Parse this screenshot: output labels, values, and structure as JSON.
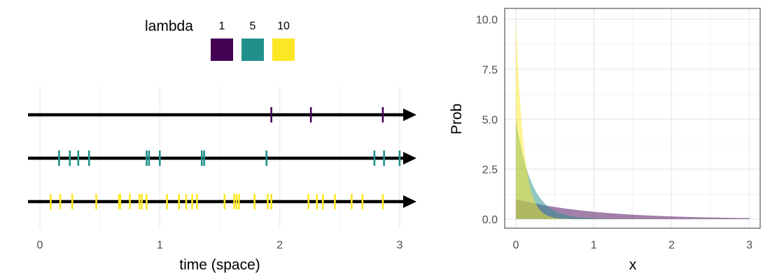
{
  "chart_data": [
    {
      "type": "scatter",
      "mark": "event ticks on arrow lines (Poisson process)",
      "title": "",
      "xlabel": "time (space)",
      "ylabel": "",
      "xlim": [
        -0.1,
        3.15
      ],
      "xticks": [
        0,
        1,
        2,
        3
      ],
      "grid": true,
      "legend": {
        "title": "lambda",
        "position": "top",
        "entries": [
          {
            "label": "1",
            "color": "#440154"
          },
          {
            "label": "5",
            "color": "#21908C"
          },
          {
            "label": "10",
            "color": "#FDE725"
          }
        ]
      },
      "series": [
        {
          "name": "1",
          "color": "#440154",
          "x": [
            1.93,
            2.26,
            2.86
          ]
        },
        {
          "name": "5",
          "color": "#21908C",
          "x": [
            0.16,
            0.25,
            0.32,
            0.41,
            0.89,
            0.91,
            1.0,
            1.35,
            1.37,
            1.89,
            2.79,
            2.87,
            3.0
          ]
        },
        {
          "name": "10",
          "color": "#FDE725",
          "x": [
            0.09,
            0.17,
            0.27,
            0.47,
            0.66,
            0.67,
            0.75,
            0.83,
            0.85,
            0.89,
            1.06,
            1.16,
            1.22,
            1.27,
            1.31,
            1.54,
            1.62,
            1.64,
            1.66,
            1.79,
            1.9,
            1.93,
            2.24,
            2.31,
            2.36,
            2.46,
            2.6,
            2.69,
            2.86
          ]
        }
      ]
    },
    {
      "type": "area",
      "title": "",
      "xlabel": "x",
      "ylabel": "Prob",
      "xlim": [
        0,
        3
      ],
      "ylim": [
        0,
        10
      ],
      "xticks": [
        0,
        1,
        2,
        3
      ],
      "yticks": [
        "0.0",
        "2.5",
        "5.0",
        "7.5",
        "10.0"
      ],
      "grid": true,
      "series": [
        {
          "name": "1",
          "color": "#440154",
          "rate": 1
        },
        {
          "name": "5",
          "color": "#21908C",
          "rate": 5
        },
        {
          "name": "10",
          "color": "#FDE725",
          "rate": 10
        }
      ]
    }
  ]
}
